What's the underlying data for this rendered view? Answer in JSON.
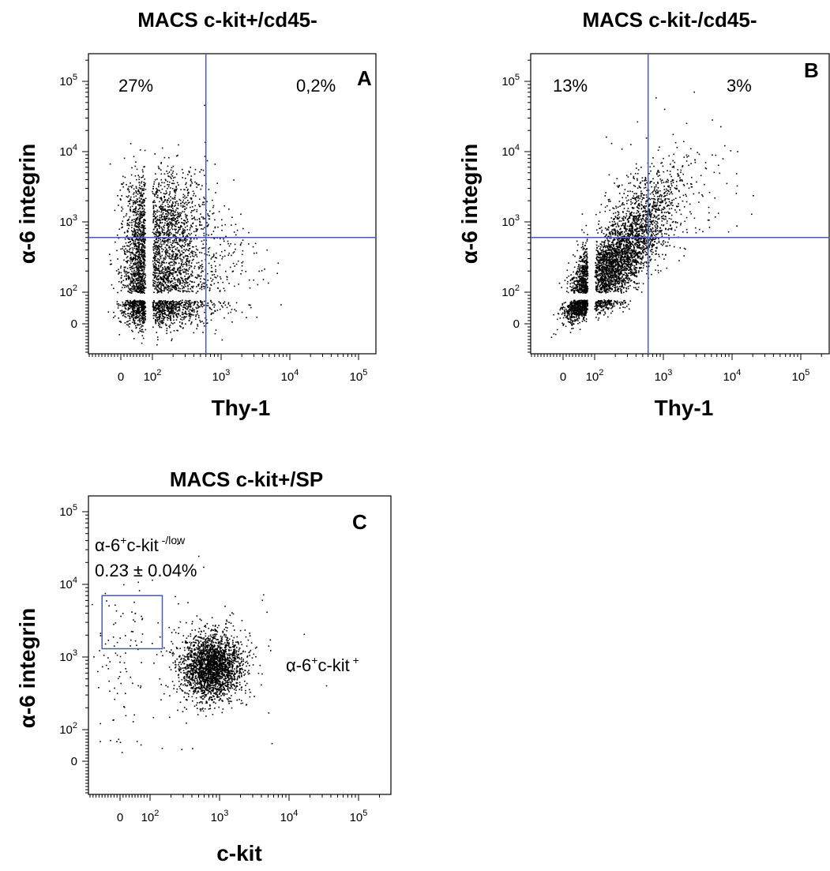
{
  "colors": {
    "gate": "#4a5ea8",
    "dots": "#000000"
  },
  "tick_labels": {
    "zero": "0",
    "base": "10",
    "exps": [
      "2",
      "3",
      "4",
      "5"
    ]
  },
  "chart_data": [
    {
      "type": "scatter",
      "panel_letter": "A",
      "title": "MACS c-kit+/cd45-",
      "xlabel": "Thy-1",
      "ylabel": "α-6 integrin",
      "scale": "logicle",
      "xlim": [
        -100,
        250000
      ],
      "ylim": [
        -100,
        250000
      ],
      "quadrant_gate": {
        "x": 600,
        "y": 600
      },
      "quadrant_labels": [
        {
          "text": "27%",
          "quadrant": "upper-left"
        },
        {
          "text": "0,2%",
          "quadrant": "upper-right"
        }
      ],
      "populations": [
        {
          "x_center": 120,
          "y_center": 1100,
          "x_spread": 0.35,
          "y_spread": 0.38,
          "fraction": 0.35
        },
        {
          "x_center": 110,
          "y_center": 110,
          "x_spread": 0.38,
          "y_spread": 0.42,
          "fraction": 0.6
        },
        {
          "x_center": 800,
          "y_center": 300,
          "x_spread": 0.35,
          "y_spread": 0.5,
          "fraction": 0.05
        }
      ],
      "events_shown": 3800
    },
    {
      "type": "scatter",
      "panel_letter": "B",
      "title": "MACS c-kit-/cd45-",
      "xlabel": "Thy-1",
      "ylabel": "α-6 integrin",
      "scale": "logicle",
      "xlim": [
        -100,
        250000
      ],
      "ylim": [
        -100,
        250000
      ],
      "quadrant_gate": {
        "x": 600,
        "y": 600
      },
      "quadrant_labels": [
        {
          "text": "13%",
          "quadrant": "upper-left"
        },
        {
          "text": "3%",
          "quadrant": "upper-right"
        }
      ],
      "populations": [
        {
          "x_center": 150,
          "y_center": 200,
          "x_spread": 0.38,
          "y_spread": 0.4,
          "fraction": 0.82,
          "correlation": 0.75
        },
        {
          "x_center": 500,
          "y_center": 1500,
          "x_spread": 0.3,
          "y_spread": 0.35,
          "fraction": 0.15,
          "correlation": 0.6
        },
        {
          "x_center": 1500,
          "y_center": 3000,
          "x_spread": 0.45,
          "y_spread": 0.5,
          "fraction": 0.03
        }
      ],
      "events_shown": 4200
    },
    {
      "type": "scatter",
      "panel_letter": "C",
      "title": "MACS c-kit+/SP",
      "xlabel": "c-kit",
      "ylabel": "α-6 integrin",
      "scale": "logicle",
      "xlim": [
        -100,
        250000
      ],
      "ylim": [
        -100,
        250000
      ],
      "gate_box": {
        "x": [
          -60,
          150
        ],
        "y": [
          1300,
          7000
        ]
      },
      "annotations": {
        "gated": {
          "prefix": "α-6",
          "sup1": "+",
          "mid": "c-kit",
          "sup2": " -/low",
          "value": "0.23 ± 0.04%"
        },
        "positive": {
          "prefix": "α-6",
          "sup1": "+",
          "mid": "c-kit",
          "sup2": " +"
        }
      },
      "populations": [
        {
          "x_center": 750,
          "y_center": 750,
          "x_spread": 0.22,
          "y_spread": 0.22,
          "fraction": 0.93
        },
        {
          "x_center": 100,
          "y_center": 900,
          "x_spread": 0.9,
          "y_spread": 0.6,
          "fraction": 0.07
        }
      ],
      "events_shown": 2600
    }
  ]
}
